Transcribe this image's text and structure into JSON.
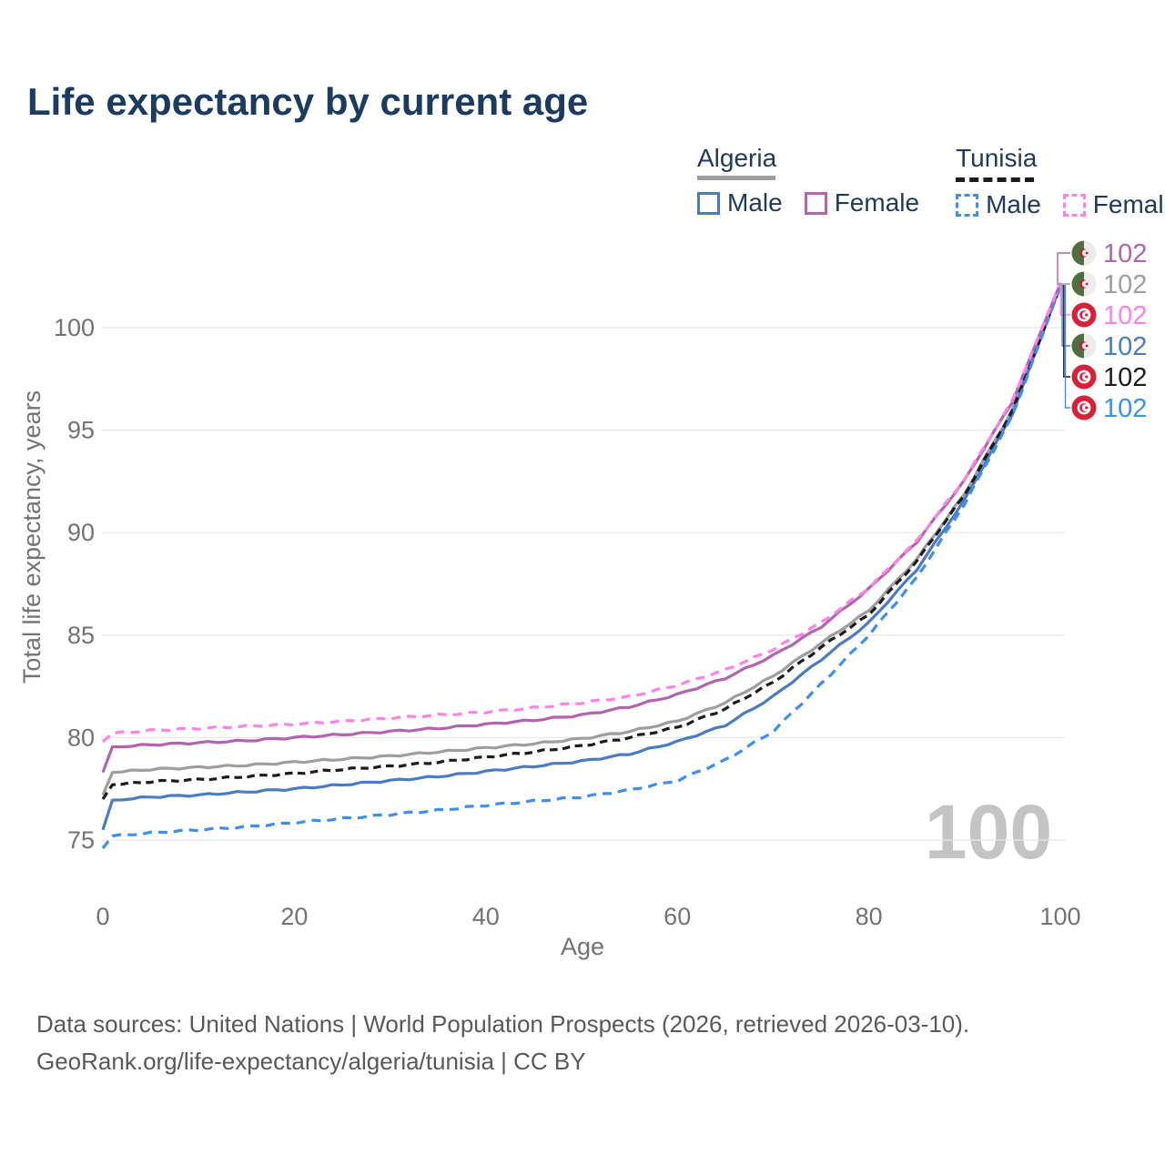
{
  "title": "Life expectancy by current age",
  "legend": {
    "groups": [
      {
        "title": "Algeria",
        "line_style": "solid",
        "items": [
          "Male",
          "Female"
        ]
      },
      {
        "title": "Tunisia",
        "line_style": "dashed",
        "items": [
          "Male",
          "Female"
        ]
      }
    ]
  },
  "footer": {
    "line1": "Data sources: United Nations | World Population Prospects (2026, retrieved 2026-03-10).",
    "line2": "GeoRank.org/life-expectancy/algeria/tunisia | CC BY"
  },
  "colors": {
    "title_text": "#1c3b60",
    "legend_text": "#1e3a5c",
    "axis_text": "#737373",
    "gridline": "#e8e8e8",
    "footer_text": "#595959",
    "watermark": "#c4c4c4",
    "algeria_male": "#4a7cc4",
    "algeria_female": "#b264ae",
    "algeria_combined": "#9e9e9e",
    "tunisia_male": "#3d8ef5",
    "tunisia_female": "#ff82e8",
    "tunisia_combined": "#1c1c1c",
    "flag_green": "#4e7040",
    "flag_red_algeria": "#c81a32",
    "flag_red_tunisia": "#d82039",
    "flag_offwhite": "#ececec"
  },
  "chart_data": {
    "type": "line",
    "title": "Life expectancy by current age",
    "xlabel": "Age",
    "ylabel": "Total life expectancy, years",
    "xlim": [
      0,
      100
    ],
    "ylim": [
      73.5,
      103
    ],
    "x_ticks": [
      0,
      20,
      40,
      60,
      80,
      100
    ],
    "y_ticks": [
      75,
      80,
      85,
      90,
      95,
      100
    ],
    "grid": "horizontal",
    "legend_position": "top-right",
    "watermark": "100",
    "ages": [
      0,
      1,
      5,
      10,
      15,
      20,
      25,
      30,
      35,
      40,
      45,
      50,
      55,
      60,
      65,
      70,
      75,
      80,
      85,
      90,
      95,
      100
    ],
    "series": [
      {
        "name": "Algeria Female",
        "country": "Algeria",
        "sex": "female",
        "color": "#b264ae",
        "line_style": "solid",
        "flag": "algeria",
        "end_label": "102",
        "values": [
          78.3,
          79.55,
          79.65,
          79.75,
          79.85,
          80.0,
          80.15,
          80.3,
          80.45,
          80.65,
          80.85,
          81.1,
          81.5,
          82.1,
          82.9,
          84.0,
          85.4,
          87.25,
          89.55,
          92.55,
          96.4,
          102.15
        ]
      },
      {
        "name": "Algeria Combined",
        "country": "Algeria",
        "sex": "combined",
        "color": "#9e9e9e",
        "line_style": "solid",
        "flag": "algeria",
        "end_label": "102",
        "values": [
          77.2,
          78.3,
          78.45,
          78.55,
          78.65,
          78.8,
          78.95,
          79.1,
          79.3,
          79.5,
          79.7,
          79.95,
          80.3,
          80.8,
          81.7,
          83.0,
          84.6,
          86.2,
          88.7,
          91.9,
          96.0,
          102.1
        ]
      },
      {
        "name": "Tunisia Female",
        "country": "Tunisia",
        "sex": "female",
        "color": "#ff82e8",
        "line_style": "dashed",
        "flag": "tunisia",
        "end_label": "102",
        "values": [
          79.8,
          80.2,
          80.35,
          80.45,
          80.55,
          80.65,
          80.8,
          80.95,
          81.1,
          81.25,
          81.45,
          81.7,
          82.0,
          82.55,
          83.3,
          84.3,
          85.6,
          87.3,
          89.6,
          92.6,
          96.45,
          102.2
        ]
      },
      {
        "name": "Algeria Male",
        "country": "Algeria",
        "sex": "male",
        "color": "#4a7cc4",
        "line_style": "solid",
        "flag": "algeria",
        "end_label": "102",
        "values": [
          75.5,
          76.95,
          77.1,
          77.2,
          77.35,
          77.5,
          77.7,
          77.9,
          78.1,
          78.35,
          78.6,
          78.85,
          79.2,
          79.8,
          80.6,
          82.0,
          83.8,
          85.6,
          88.2,
          91.6,
          95.8,
          102.05
        ]
      },
      {
        "name": "Tunisia Combined",
        "country": "Tunisia",
        "sex": "combined",
        "color": "#1c1c1c",
        "line_style": "dashed",
        "flag": "tunisia",
        "end_label": "102",
        "values": [
          77.0,
          77.7,
          77.85,
          77.95,
          78.1,
          78.25,
          78.45,
          78.6,
          78.8,
          79.05,
          79.3,
          79.6,
          80.0,
          80.5,
          81.4,
          82.7,
          84.4,
          86.0,
          88.6,
          91.85,
          95.95,
          102.0
        ]
      },
      {
        "name": "Tunisia Male",
        "country": "Tunisia",
        "sex": "male",
        "color": "#3d8ef5",
        "line_style": "dashed",
        "flag": "tunisia",
        "end_label": "102",
        "values": [
          74.6,
          75.2,
          75.35,
          75.5,
          75.65,
          75.85,
          76.05,
          76.25,
          76.45,
          76.7,
          76.9,
          77.1,
          77.45,
          77.9,
          78.9,
          80.3,
          82.6,
          85.0,
          87.8,
          91.4,
          95.7,
          102.0
        ]
      }
    ],
    "draw_order": [
      1,
      3,
      4,
      5,
      0,
      2
    ]
  }
}
